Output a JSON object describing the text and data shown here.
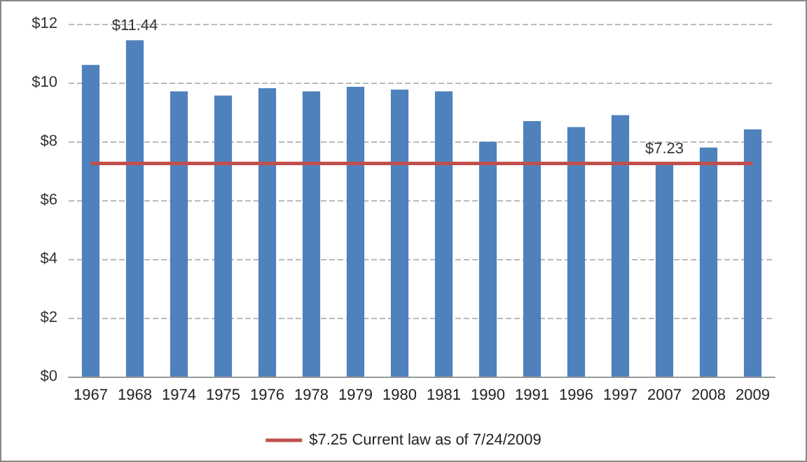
{
  "chart_data": {
    "type": "bar",
    "categories": [
      "1967",
      "1968",
      "1974",
      "1975",
      "1976",
      "1978",
      "1979",
      "1980",
      "1981",
      "1990",
      "1991",
      "1996",
      "1997",
      "2007",
      "2008",
      "2009"
    ],
    "series": [
      {
        "color": "#4f81bd",
        "values": [
          10.6,
          11.44,
          9.7,
          9.56,
          9.81,
          9.7,
          9.86,
          9.76,
          9.7,
          7.99,
          8.69,
          8.49,
          8.89,
          7.23,
          7.79,
          8.41
        ],
        "value_labels": [
          null,
          "$11.44",
          null,
          null,
          null,
          null,
          null,
          null,
          null,
          null,
          null,
          null,
          null,
          "$7.23",
          null,
          null
        ]
      },
      {
        "type": "line",
        "name": "$7.25 Current law as of 7/24/2009",
        "color": "#c0504d",
        "marker": "none",
        "values": [
          7.25,
          7.25,
          7.25,
          7.25,
          7.25,
          7.25,
          7.25,
          7.25,
          7.25,
          7.25,
          7.25,
          7.25,
          7.25,
          7.25,
          7.25,
          7.25
        ]
      }
    ],
    "ylim": [
      0,
      12
    ],
    "yticks": [
      {
        "value": 0,
        "label": "$0"
      },
      {
        "value": 2,
        "label": "$2"
      },
      {
        "value": 4,
        "label": "$4"
      },
      {
        "value": 6,
        "label": "$6"
      },
      {
        "value": 8,
        "label": "$8"
      },
      {
        "value": 10,
        "label": "$10"
      },
      {
        "value": 12,
        "label": "$12"
      }
    ],
    "grid": "y",
    "legend": "bottom"
  }
}
